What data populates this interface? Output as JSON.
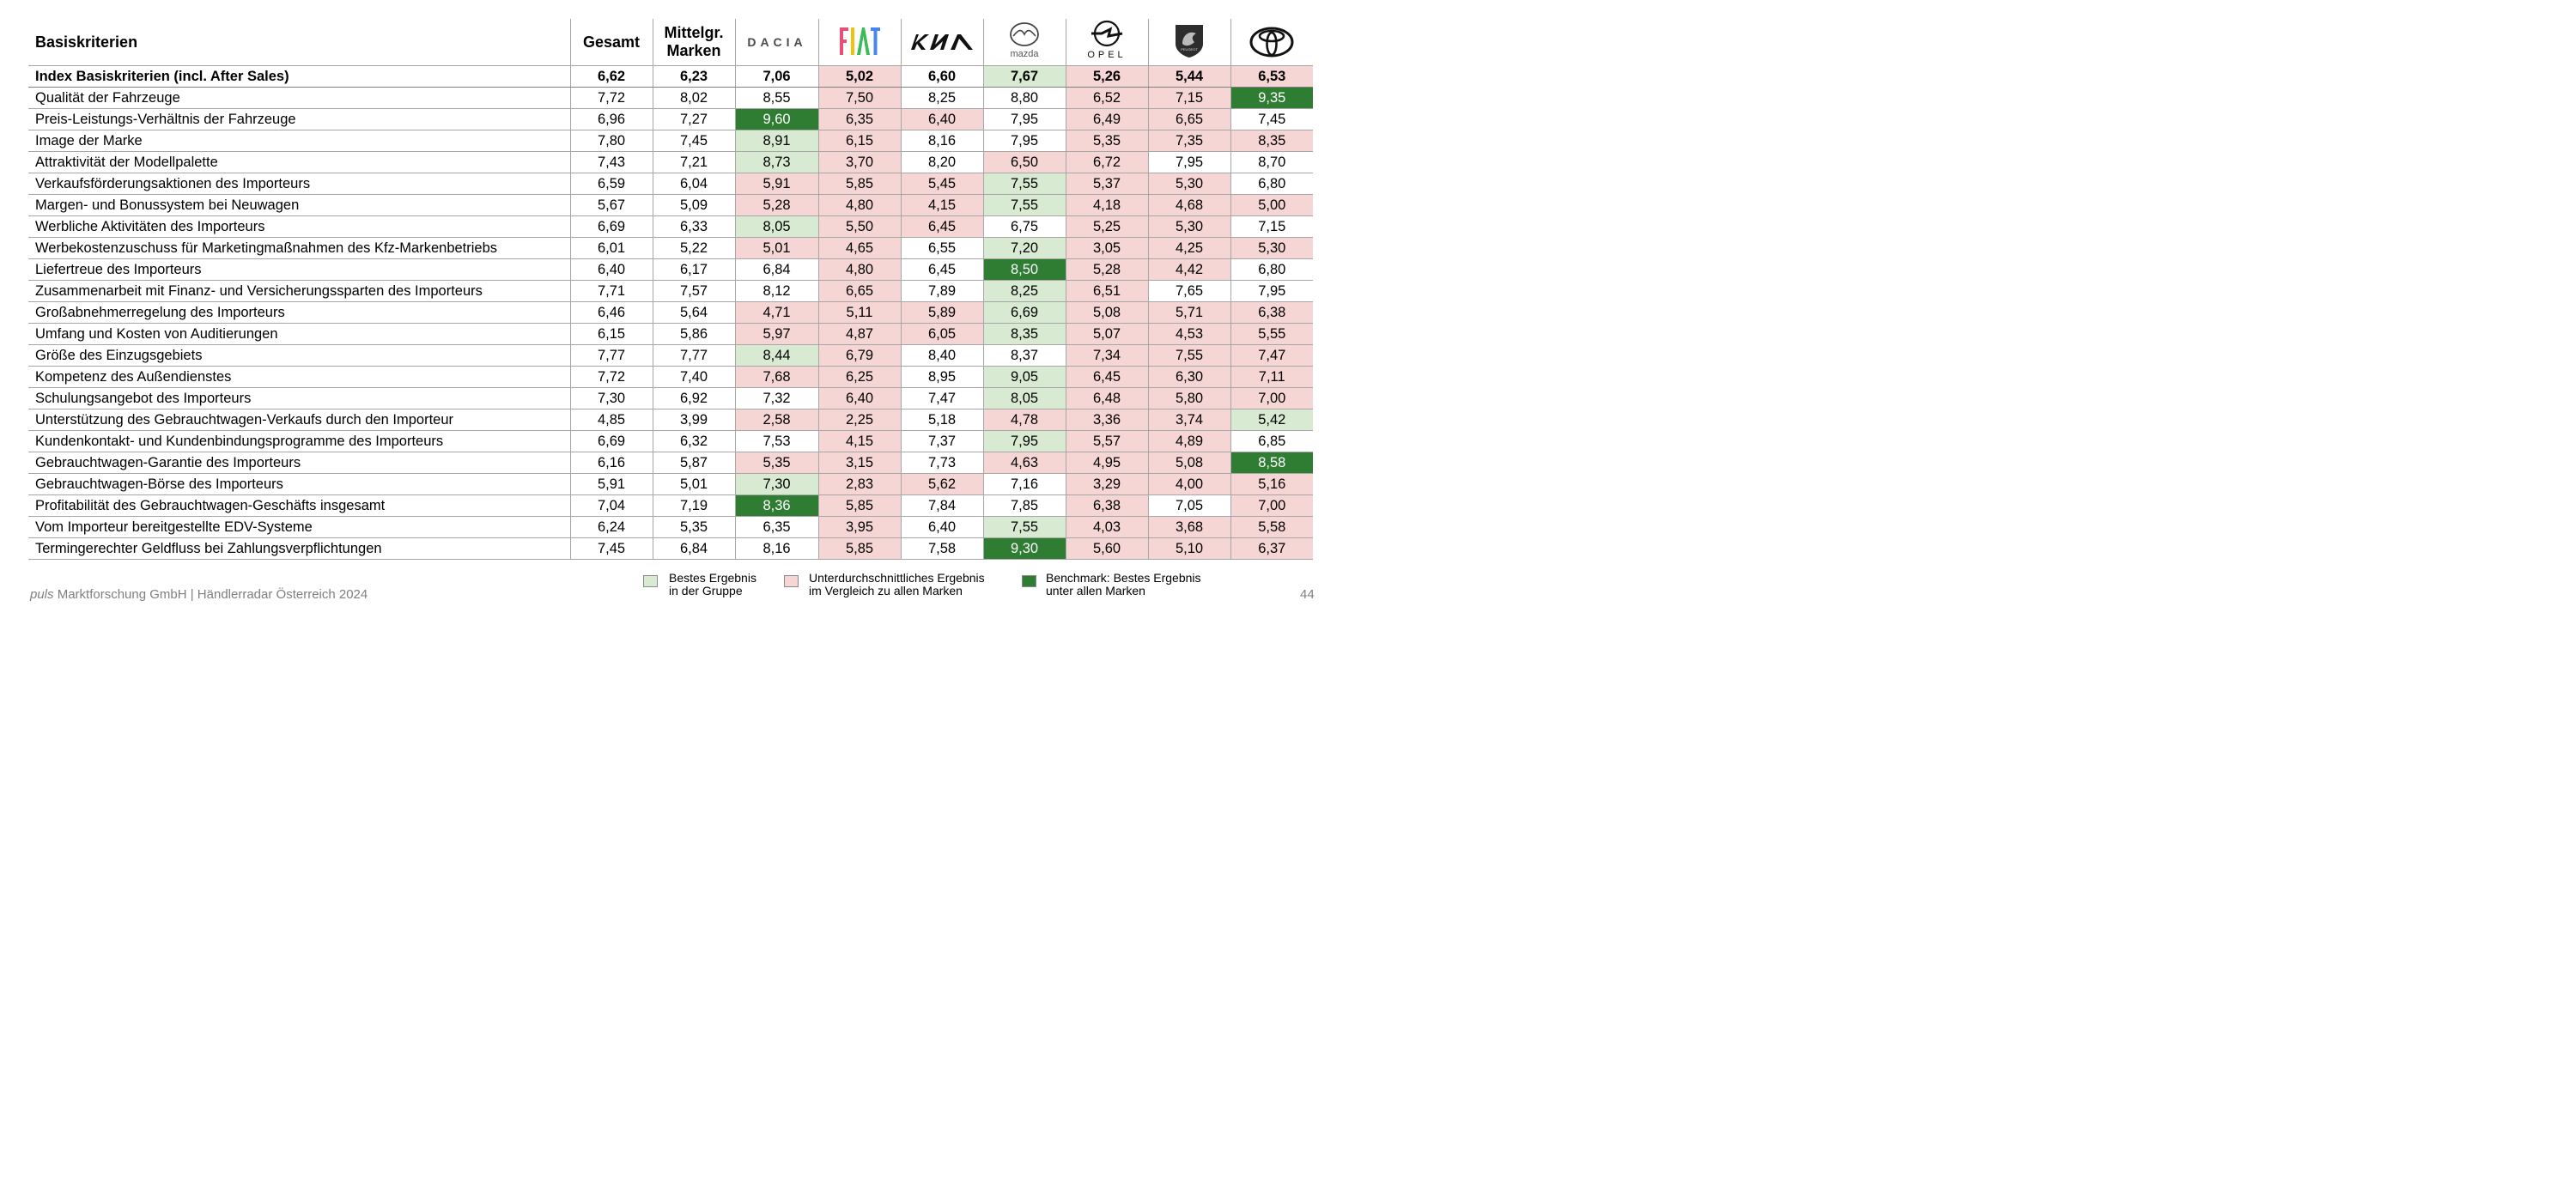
{
  "table": {
    "header": {
      "label": "Basiskriterien",
      "gesamt": "Gesamt",
      "mittel_line1": "Mittelgr.",
      "mittel_line2": "Marken",
      "brands": [
        {
          "name": "Dacia",
          "icon": "dacia-logo-icon",
          "text": "DACIA"
        },
        {
          "name": "Fiat",
          "icon": "fiat-logo-icon",
          "text": "FIAT"
        },
        {
          "name": "Kia",
          "icon": "kia-logo-icon",
          "text": "KIA"
        },
        {
          "name": "Mazda",
          "icon": "mazda-logo-icon",
          "text": "mazda"
        },
        {
          "name": "Opel",
          "icon": "opel-logo-icon",
          "text": "OPEL"
        },
        {
          "name": "Peugeot",
          "icon": "peugeot-logo-icon",
          "text": "PEUGEOT"
        },
        {
          "name": "Toyota",
          "icon": "toyota-logo-icon",
          "text": ""
        }
      ]
    },
    "rows": [
      {
        "label": "Index Basiskriterien (incl. After Sales)",
        "bold": true,
        "values": [
          "6,62",
          "6,23",
          "7,06",
          "5,02",
          "6,60",
          "7,67",
          "5,26",
          "5,44",
          "6,53"
        ],
        "colors": [
          "",
          "",
          "",
          "r",
          "",
          "g",
          "r",
          "r",
          "r"
        ]
      },
      {
        "label": "Qualität der Fahrzeuge",
        "values": [
          "7,72",
          "8,02",
          "8,55",
          "7,50",
          "8,25",
          "8,80",
          "6,52",
          "7,15",
          "9,35"
        ],
        "colors": [
          "",
          "",
          "",
          "r",
          "",
          "",
          "r",
          "r",
          "dg"
        ]
      },
      {
        "label": "Preis-Leistungs-Verhältnis der Fahrzeuge",
        "values": [
          "6,96",
          "7,27",
          "9,60",
          "6,35",
          "6,40",
          "7,95",
          "6,49",
          "6,65",
          "7,45"
        ],
        "colors": [
          "",
          "",
          "dg",
          "r",
          "r",
          "",
          "r",
          "r",
          ""
        ]
      },
      {
        "label": "Image der Marke",
        "values": [
          "7,80",
          "7,45",
          "8,91",
          "6,15",
          "8,16",
          "7,95",
          "5,35",
          "7,35",
          "8,35"
        ],
        "colors": [
          "",
          "",
          "g",
          "r",
          "",
          "",
          "r",
          "r",
          "r"
        ]
      },
      {
        "label": "Attraktivität der Modellpalette",
        "values": [
          "7,43",
          "7,21",
          "8,73",
          "3,70",
          "8,20",
          "6,50",
          "6,72",
          "7,95",
          "8,70"
        ],
        "colors": [
          "",
          "",
          "g",
          "r",
          "",
          "r",
          "r",
          "",
          ""
        ]
      },
      {
        "label": "Verkaufsförderungsaktionen des Importeurs",
        "values": [
          "6,59",
          "6,04",
          "5,91",
          "5,85",
          "5,45",
          "7,55",
          "5,37",
          "5,30",
          "6,80"
        ],
        "colors": [
          "",
          "",
          "r",
          "r",
          "r",
          "g",
          "r",
          "r",
          ""
        ]
      },
      {
        "label": "Margen- und Bonussystem bei Neuwagen",
        "values": [
          "5,67",
          "5,09",
          "5,28",
          "4,80",
          "4,15",
          "7,55",
          "4,18",
          "4,68",
          "5,00"
        ],
        "colors": [
          "",
          "",
          "r",
          "r",
          "r",
          "g",
          "r",
          "r",
          "r"
        ]
      },
      {
        "label": "Werbliche Aktivitäten des Importeurs",
        "values": [
          "6,69",
          "6,33",
          "8,05",
          "5,50",
          "6,45",
          "6,75",
          "5,25",
          "5,30",
          "7,15"
        ],
        "colors": [
          "",
          "",
          "g",
          "r",
          "r",
          "",
          "r",
          "r",
          ""
        ]
      },
      {
        "label": "Werbekostenzuschuss für Marketingmaßnahmen des Kfz-Markenbetriebs",
        "values": [
          "6,01",
          "5,22",
          "5,01",
          "4,65",
          "6,55",
          "7,20",
          "3,05",
          "4,25",
          "5,30"
        ],
        "colors": [
          "",
          "",
          "r",
          "r",
          "",
          "g",
          "r",
          "r",
          "r"
        ]
      },
      {
        "label": "Liefertreue des Importeurs",
        "values": [
          "6,40",
          "6,17",
          "6,84",
          "4,80",
          "6,45",
          "8,50",
          "5,28",
          "4,42",
          "6,80"
        ],
        "colors": [
          "",
          "",
          "",
          "r",
          "",
          "dg",
          "r",
          "r",
          ""
        ]
      },
      {
        "label": "Zusammenarbeit mit Finanz- und Versicherungssparten des Importeurs",
        "values": [
          "7,71",
          "7,57",
          "8,12",
          "6,65",
          "7,89",
          "8,25",
          "6,51",
          "7,65",
          "7,95"
        ],
        "colors": [
          "",
          "",
          "",
          "r",
          "",
          "g",
          "r",
          "",
          ""
        ]
      },
      {
        "label": "Großabnehmerregelung des Importeurs",
        "values": [
          "6,46",
          "5,64",
          "4,71",
          "5,11",
          "5,89",
          "6,69",
          "5,08",
          "5,71",
          "6,38"
        ],
        "colors": [
          "",
          "",
          "r",
          "r",
          "r",
          "g",
          "r",
          "r",
          "r"
        ]
      },
      {
        "label": "Umfang und Kosten von Auditierungen",
        "values": [
          "6,15",
          "5,86",
          "5,97",
          "4,87",
          "6,05",
          "8,35",
          "5,07",
          "4,53",
          "5,55"
        ],
        "colors": [
          "",
          "",
          "r",
          "r",
          "r",
          "g",
          "r",
          "r",
          "r"
        ]
      },
      {
        "label": "Größe des Einzugsgebiets",
        "values": [
          "7,77",
          "7,77",
          "8,44",
          "6,79",
          "8,40",
          "8,37",
          "7,34",
          "7,55",
          "7,47"
        ],
        "colors": [
          "",
          "",
          "g",
          "r",
          "",
          "",
          "r",
          "r",
          "r"
        ]
      },
      {
        "label": "Kompetenz des Außendienstes",
        "values": [
          "7,72",
          "7,40",
          "7,68",
          "6,25",
          "8,95",
          "9,05",
          "6,45",
          "6,30",
          "7,11"
        ],
        "colors": [
          "",
          "",
          "r",
          "r",
          "",
          "g",
          "r",
          "r",
          "r"
        ]
      },
      {
        "label": "Schulungsangebot des Importeurs",
        "values": [
          "7,30",
          "6,92",
          "7,32",
          "6,40",
          "7,47",
          "8,05",
          "6,48",
          "5,80",
          "7,00"
        ],
        "colors": [
          "",
          "",
          "",
          "r",
          "",
          "g",
          "r",
          "r",
          "r"
        ]
      },
      {
        "label": "Unterstützung des Gebrauchtwagen-Verkaufs durch den Importeur",
        "values": [
          "4,85",
          "3,99",
          "2,58",
          "2,25",
          "5,18",
          "4,78",
          "3,36",
          "3,74",
          "5,42"
        ],
        "colors": [
          "",
          "",
          "r",
          "r",
          "",
          "r",
          "r",
          "r",
          "g"
        ]
      },
      {
        "label": "Kundenkontakt- und Kundenbindungsprogramme des Importeurs",
        "values": [
          "6,69",
          "6,32",
          "7,53",
          "4,15",
          "7,37",
          "7,95",
          "5,57",
          "4,89",
          "6,85"
        ],
        "colors": [
          "",
          "",
          "",
          "r",
          "",
          "g",
          "r",
          "r",
          ""
        ]
      },
      {
        "label": "Gebrauchtwagen-Garantie des Importeurs",
        "values": [
          "6,16",
          "5,87",
          "5,35",
          "3,15",
          "7,73",
          "4,63",
          "4,95",
          "5,08",
          "8,58"
        ],
        "colors": [
          "",
          "",
          "r",
          "r",
          "",
          "r",
          "r",
          "r",
          "dg"
        ]
      },
      {
        "label": "Gebrauchtwagen-Börse des Importeurs",
        "values": [
          "5,91",
          "5,01",
          "7,30",
          "2,83",
          "5,62",
          "7,16",
          "3,29",
          "4,00",
          "5,16"
        ],
        "colors": [
          "",
          "",
          "g",
          "r",
          "r",
          "",
          "r",
          "r",
          "r"
        ]
      },
      {
        "label": "Profitabilität des Gebrauchtwagen-Geschäfts insgesamt",
        "values": [
          "7,04",
          "7,19",
          "8,36",
          "5,85",
          "7,84",
          "7,85",
          "6,38",
          "7,05",
          "7,00"
        ],
        "colors": [
          "",
          "",
          "dg",
          "r",
          "",
          "",
          "r",
          "",
          "r"
        ]
      },
      {
        "label": "Vom Importeur bereitgestellte EDV-Systeme",
        "values": [
          "6,24",
          "5,35",
          "6,35",
          "3,95",
          "6,40",
          "7,55",
          "4,03",
          "3,68",
          "5,58"
        ],
        "colors": [
          "",
          "",
          "",
          "r",
          "",
          "g",
          "r",
          "r",
          "r"
        ]
      },
      {
        "label": "Termingerechter Geldfluss bei Zahlungsverpflichtungen",
        "values": [
          "7,45",
          "6,84",
          "8,16",
          "5,85",
          "7,58",
          "9,30",
          "5,60",
          "5,10",
          "6,37"
        ],
        "colors": [
          "",
          "",
          "",
          "r",
          "",
          "dg",
          "r",
          "r",
          "r"
        ]
      }
    ]
  },
  "legend": {
    "green_line1": "Bestes Ergebnis",
    "green_line2": "in der Gruppe",
    "red_line1": "Unterdurchschnittliches Ergebnis",
    "red_line2": "im Vergleich zu allen Marken",
    "dark_line1": "Benchmark: Bestes Ergebnis",
    "dark_line2": "unter allen Marken"
  },
  "footer": {
    "company_italic": "puls",
    "company_rest": " Marktforschung GmbH | Händlerradar Österreich 2024",
    "page_number": "44"
  },
  "colors": {
    "green": "#d9ead3",
    "red": "#f6d5d5",
    "dark_green": "#2e7d32"
  }
}
